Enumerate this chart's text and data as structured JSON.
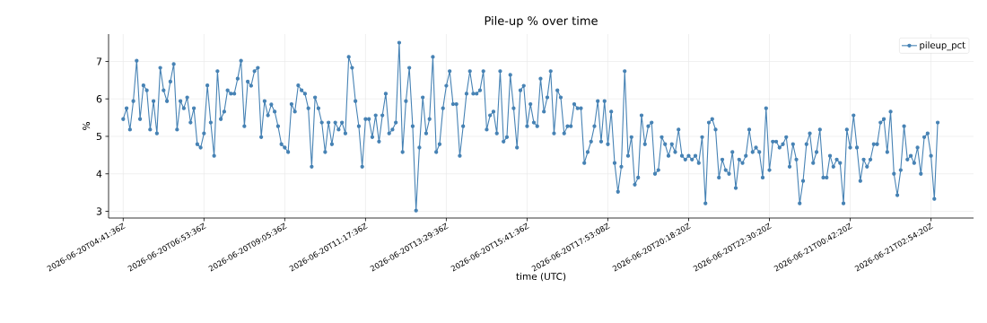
{
  "chart_data": {
    "type": "line",
    "title": "Pile-up % over time",
    "xlabel": "time (UTC)",
    "ylabel": "%",
    "categories": [
      "2026-06-20T04:41:36Z",
      null,
      null,
      null,
      null,
      null,
      null,
      null,
      null,
      null,
      null,
      null,
      null,
      null,
      null,
      null,
      null,
      null,
      null,
      null,
      null,
      null,
      null,
      null,
      "2026-06-20T06:53:36Z",
      null,
      null,
      null,
      null,
      null,
      null,
      null,
      null,
      null,
      null,
      null,
      null,
      null,
      null,
      null,
      null,
      null,
      null,
      null,
      null,
      null,
      null,
      null,
      "2026-06-20T09:05:36Z",
      null,
      null,
      null,
      null,
      null,
      null,
      null,
      null,
      null,
      null,
      null,
      null,
      null,
      null,
      null,
      null,
      null,
      null,
      null,
      null,
      null,
      null,
      null,
      "2026-06-20T11:17:36Z",
      null,
      null,
      null,
      null,
      null,
      null,
      null,
      null,
      null,
      null,
      null,
      null,
      null,
      null,
      null,
      null,
      null,
      null,
      null,
      null,
      null,
      null,
      null,
      "2026-06-20T13:29:36Z",
      null,
      null,
      null,
      null,
      null,
      null,
      null,
      null,
      null,
      null,
      null,
      null,
      null,
      null,
      null,
      null,
      null,
      null,
      null,
      null,
      null,
      null,
      null,
      "2026-06-20T15:41:36Z",
      null,
      null,
      null,
      null,
      null,
      null,
      null,
      null,
      null,
      null,
      null,
      null,
      null,
      null,
      null,
      null,
      null,
      null,
      null,
      null,
      null,
      null,
      null,
      "2026-06-20T17:53:08Z",
      null,
      null,
      null,
      null,
      null,
      null,
      null,
      null,
      null,
      null,
      null,
      null,
      null,
      null,
      null,
      null,
      null,
      null,
      null,
      null,
      null,
      null,
      null,
      "2026-06-20T20:18:20Z",
      null,
      null,
      null,
      null,
      null,
      null,
      null,
      null,
      null,
      null,
      null,
      null,
      null,
      null,
      null,
      null,
      null,
      null,
      null,
      null,
      null,
      null,
      null,
      "2026-06-20T22:30:20Z",
      null,
      null,
      null,
      null,
      null,
      null,
      null,
      null,
      null,
      null,
      null,
      null,
      null,
      null,
      null,
      null,
      null,
      null,
      null,
      null,
      null,
      null,
      null,
      "2026-06-21T00:42:20Z",
      null,
      null,
      null,
      null,
      null,
      null,
      null,
      null,
      null,
      null,
      null,
      null,
      null,
      null,
      null,
      null,
      null,
      null,
      null,
      null,
      null,
      null,
      null,
      "2026-06-21T02:54:20Z",
      null,
      null
    ],
    "series": [
      {
        "name": "pileup_pct",
        "color": "#4682b4",
        "values": [
          5.46,
          5.75,
          5.18,
          5.94,
          7.02,
          5.46,
          6.36,
          6.23,
          5.18,
          5.94,
          5.08,
          6.83,
          6.23,
          5.94,
          6.46,
          6.93,
          5.18,
          5.94,
          5.75,
          6.04,
          5.37,
          5.75,
          4.79,
          4.7,
          5.08,
          6.36,
          5.37,
          4.48,
          6.74,
          5.46,
          5.66,
          6.23,
          6.14,
          6.14,
          6.54,
          7.02,
          5.27,
          6.46,
          6.35,
          6.74,
          6.83,
          4.98,
          5.94,
          5.56,
          5.85,
          5.66,
          5.27,
          4.79,
          4.7,
          4.58,
          5.86,
          5.66,
          6.36,
          6.23,
          6.14,
          5.75,
          4.19,
          6.04,
          5.75,
          5.37,
          4.58,
          5.37,
          4.79,
          5.37,
          5.18,
          5.37,
          5.08,
          7.12,
          6.83,
          5.94,
          5.27,
          4.19,
          5.46,
          5.46,
          4.98,
          5.56,
          4.86,
          5.56,
          6.14,
          5.08,
          5.18,
          5.37,
          7.5,
          4.58,
          5.94,
          6.83,
          5.27,
          3.02,
          4.7,
          6.04,
          5.08,
          5.46,
          7.12,
          4.58,
          4.79,
          5.75,
          6.35,
          6.74,
          5.86,
          5.86,
          4.48,
          5.27,
          6.14,
          6.74,
          6.14,
          6.14,
          6.23,
          6.74,
          5.18,
          5.56,
          5.66,
          5.08,
          6.74,
          4.86,
          4.98,
          6.64,
          5.75,
          4.7,
          6.23,
          6.35,
          5.27,
          5.86,
          5.37,
          5.27,
          6.54,
          5.66,
          6.04,
          6.74,
          5.08,
          6.23,
          6.04,
          5.08,
          5.27,
          5.27,
          5.86,
          5.75,
          5.75,
          4.29,
          4.58,
          4.86,
          5.27,
          5.94,
          4.86,
          5.94,
          4.79,
          5.66,
          4.29,
          3.52,
          4.19,
          6.74,
          4.48,
          4.98,
          3.71,
          3.9,
          5.56,
          4.79,
          5.27,
          5.37,
          4.0,
          4.1,
          4.98,
          4.79,
          4.48,
          4.79,
          4.58,
          5.18,
          4.48,
          4.38,
          4.48,
          4.38,
          4.48,
          4.29,
          4.98,
          3.21,
          5.37,
          5.46,
          5.18,
          3.9,
          4.38,
          4.1,
          4.0,
          4.58,
          3.62,
          4.38,
          4.29,
          4.48,
          5.18,
          4.58,
          4.7,
          4.58,
          3.9,
          5.75,
          4.1,
          4.86,
          4.86,
          4.7,
          4.79,
          4.98,
          4.19,
          4.79,
          4.38,
          3.21,
          3.81,
          4.79,
          5.08,
          4.29,
          4.58,
          5.18,
          3.9,
          3.9,
          4.48,
          4.19,
          4.38,
          4.29,
          3.21,
          5.18,
          4.7,
          5.56,
          4.7,
          3.81,
          4.38,
          4.19,
          4.38,
          4.79,
          4.79,
          5.37,
          5.46,
          4.58,
          5.66,
          4.0,
          3.43,
          4.1,
          5.27,
          4.38,
          4.48,
          4.29,
          4.7,
          4.0,
          4.98,
          5.08,
          4.48,
          3.33,
          5.37
        ]
      }
    ],
    "ylim": [
      2.82,
      7.73
    ],
    "yticks": [
      3,
      4,
      5,
      6,
      7
    ],
    "grid": true,
    "legend": "top right",
    "marker": "circle",
    "line_style": "solid"
  }
}
